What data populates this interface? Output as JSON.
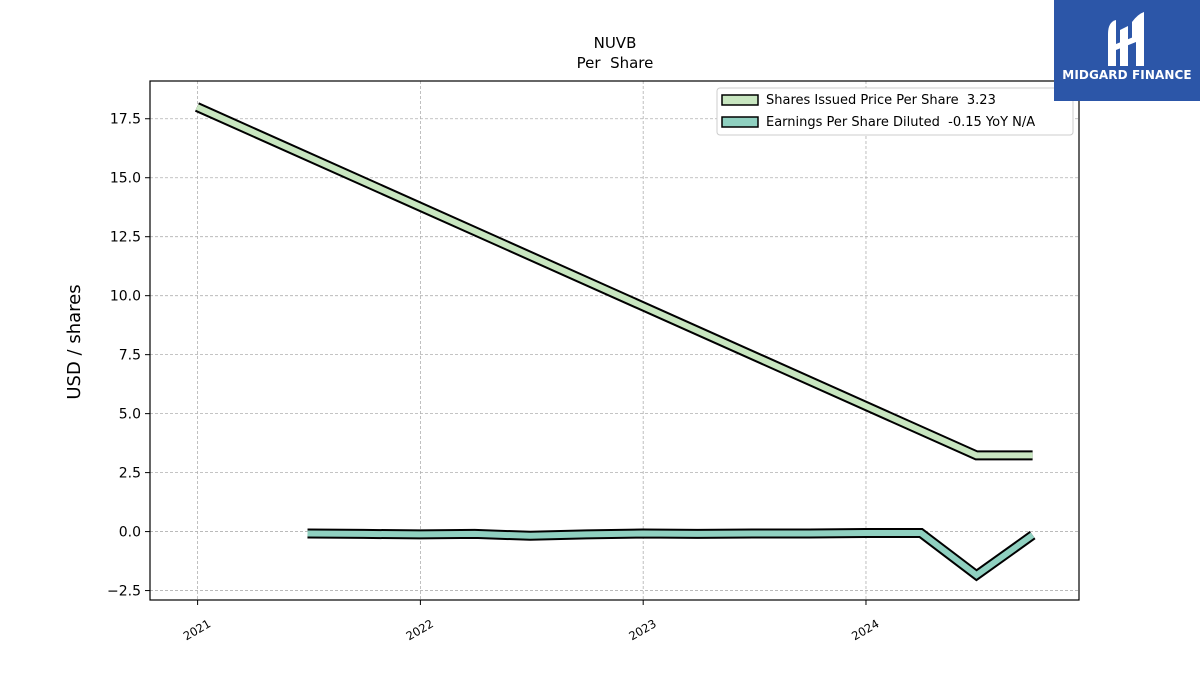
{
  "brand": {
    "name": "MIDGARD FINANCE",
    "color": "#2c56a8"
  },
  "chart_data": {
    "type": "line",
    "title": "NUVB",
    "subtitle": "Per  Share",
    "xlabel": "",
    "ylabel": "USD / shares",
    "x_ticks": [
      "2021",
      "2022",
      "2023",
      "2024"
    ],
    "xlim": [
      "2020-10-15",
      "2024-12-15"
    ],
    "ylim": [
      -2.9,
      19.1
    ],
    "y_ticks": [
      -2.5,
      0.0,
      2.5,
      5.0,
      7.5,
      10.0,
      12.5,
      15.0,
      17.5
    ],
    "y_tick_labels": [
      "−2.5",
      "0.0",
      "2.5",
      "5.0",
      "7.5",
      "10.0",
      "12.5",
      "15.0",
      "17.5"
    ],
    "grid": true,
    "legend_position": "top-right",
    "series": [
      {
        "name": "Shares Issued Price Per Share  3.23",
        "color": "#c8e6c0",
        "points": [
          [
            "2020-12-31",
            18.0
          ],
          [
            "2024-06-30",
            3.23
          ],
          [
            "2024-09-30",
            3.23
          ]
        ]
      },
      {
        "name": "Earnings Per Share Diluted  -0.15 YoY N/A",
        "color": "#8fd0c0",
        "points": [
          [
            "2021-06-30",
            -0.08
          ],
          [
            "2021-09-30",
            -0.1
          ],
          [
            "2021-12-31",
            -0.12
          ],
          [
            "2022-03-31",
            -0.1
          ],
          [
            "2022-06-30",
            -0.18
          ],
          [
            "2022-09-30",
            -0.12
          ],
          [
            "2022-12-31",
            -0.08
          ],
          [
            "2023-03-31",
            -0.1
          ],
          [
            "2023-06-30",
            -0.08
          ],
          [
            "2023-09-30",
            -0.08
          ],
          [
            "2023-12-31",
            -0.06
          ],
          [
            "2024-03-31",
            -0.06
          ],
          [
            "2024-06-30",
            -1.85
          ],
          [
            "2024-09-30",
            -0.15
          ]
        ]
      }
    ]
  }
}
